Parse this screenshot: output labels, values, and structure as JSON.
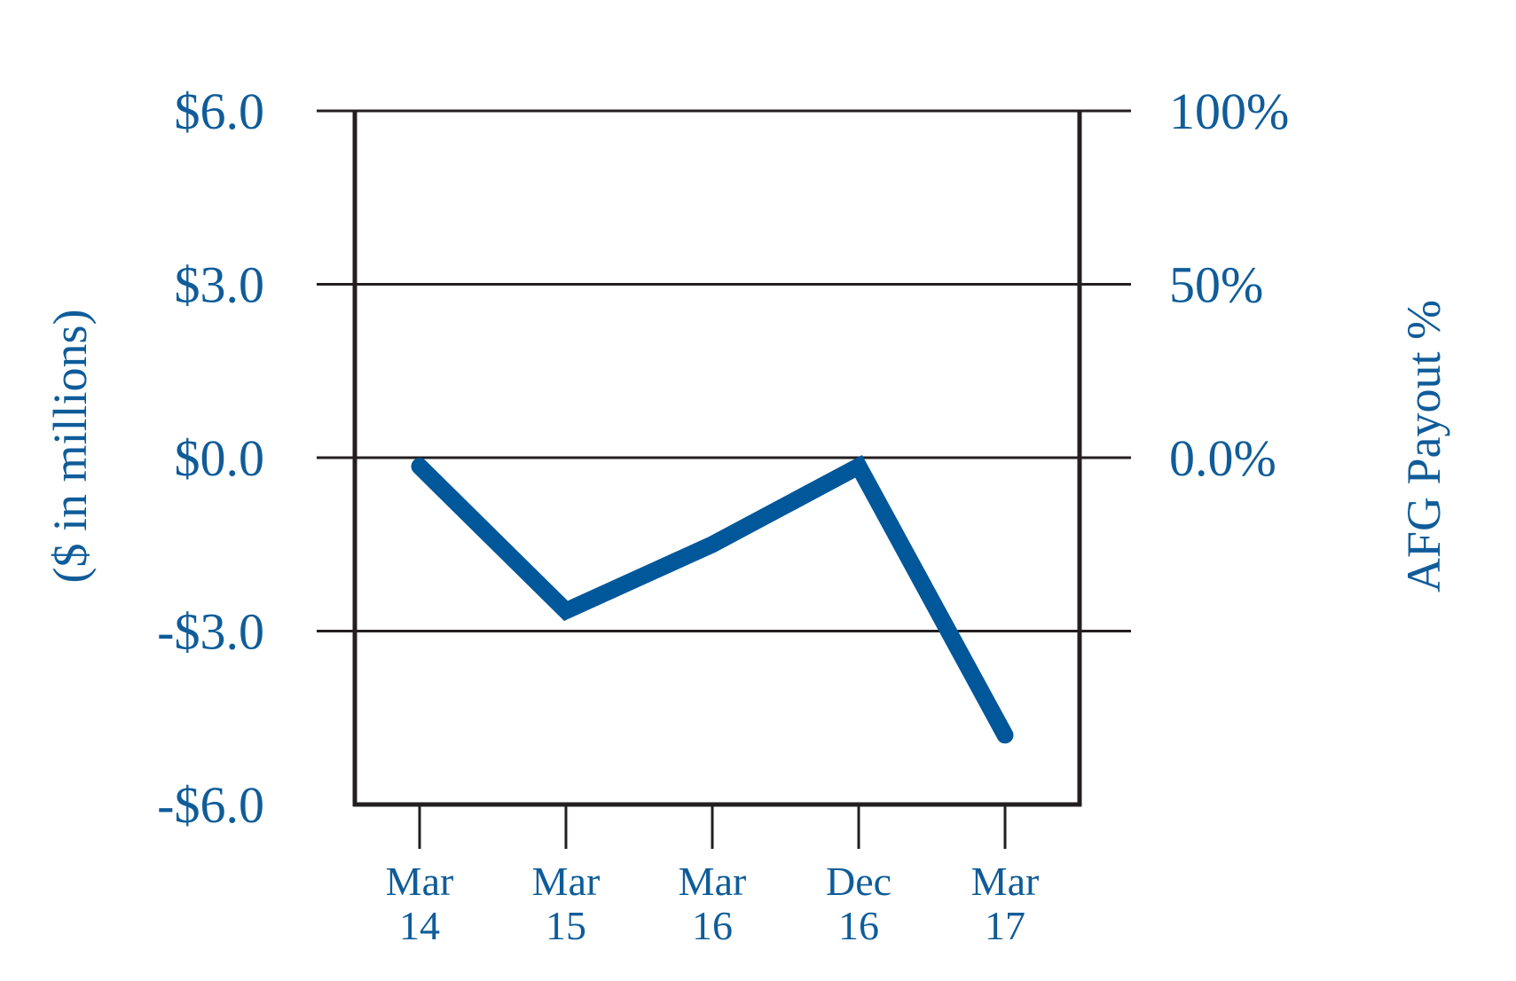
{
  "chart_data": {
    "type": "line",
    "categories": [
      "Mar 14",
      "Mar 15",
      "Mar 16",
      "Dec 16",
      "Mar 17"
    ],
    "x_tick_labels": [
      [
        "Mar",
        "14"
      ],
      [
        "Mar",
        "15"
      ],
      [
        "Mar",
        "16"
      ],
      [
        "Dec",
        "16"
      ],
      [
        "Mar",
        "17"
      ]
    ],
    "series": [
      {
        "values": [
          -0.15,
          -2.65,
          -1.5,
          -0.15,
          -4.8
        ]
      }
    ],
    "ylim": [
      -6,
      6
    ],
    "left_axis": {
      "label": "($ in millions)",
      "ticks": [
        6,
        3,
        0,
        -3,
        -6
      ],
      "tick_labels": [
        "$6.0",
        "$3.0",
        "$0.0",
        "-$3.0",
        "-$6.0"
      ]
    },
    "right_axis": {
      "label": "AFG Payout %",
      "tick_labels": [
        "100%",
        "50%",
        "0.0%"
      ],
      "tick_positions_left_units": [
        6,
        3,
        0
      ]
    },
    "gridlines_at": [
      6,
      3,
      0,
      -3
    ],
    "grid": true,
    "legend": "none",
    "colors": {
      "text": "#0f5c99",
      "line": "#00579a",
      "frame": "#231f20"
    }
  }
}
